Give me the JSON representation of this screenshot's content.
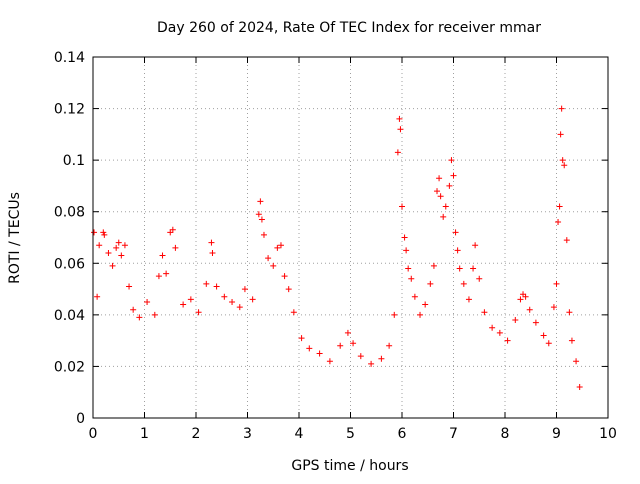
{
  "chart_data": {
    "type": "scatter",
    "title": "Day 260 of 2024, Rate Of TEC Index for receiver mmar",
    "xlabel": "GPS time / hours",
    "ylabel": "ROTI / TECUs",
    "xlim": [
      0,
      10
    ],
    "ylim": [
      0,
      0.14
    ],
    "x_ticks": [
      0,
      1,
      2,
      3,
      4,
      5,
      6,
      7,
      8,
      9,
      10
    ],
    "y_ticks": [
      0,
      0.02,
      0.04,
      0.06,
      0.08,
      0.1,
      0.12,
      0.14
    ],
    "y_tick_labels": [
      "0",
      "0.02",
      "0.04",
      "0.06",
      "0.08",
      "0.1",
      "0.12",
      "0.14"
    ],
    "grid": true,
    "marker": "+",
    "color": "#ff0000",
    "series": [
      {
        "name": "ROTI",
        "points": [
          [
            0.02,
            0.072
          ],
          [
            0.08,
            0.047
          ],
          [
            0.12,
            0.067
          ],
          [
            0.2,
            0.072
          ],
          [
            0.22,
            0.071
          ],
          [
            0.3,
            0.064
          ],
          [
            0.38,
            0.059
          ],
          [
            0.45,
            0.066
          ],
          [
            0.5,
            0.068
          ],
          [
            0.55,
            0.063
          ],
          [
            0.62,
            0.067
          ],
          [
            0.7,
            0.051
          ],
          [
            0.78,
            0.042
          ],
          [
            0.9,
            0.039
          ],
          [
            1.05,
            0.045
          ],
          [
            1.2,
            0.04
          ],
          [
            1.28,
            0.055
          ],
          [
            1.35,
            0.063
          ],
          [
            1.42,
            0.056
          ],
          [
            1.5,
            0.072
          ],
          [
            1.55,
            0.073
          ],
          [
            1.6,
            0.066
          ],
          [
            1.75,
            0.044
          ],
          [
            1.9,
            0.046
          ],
          [
            2.05,
            0.041
          ],
          [
            2.2,
            0.052
          ],
          [
            2.3,
            0.068
          ],
          [
            2.32,
            0.064
          ],
          [
            2.4,
            0.051
          ],
          [
            2.55,
            0.047
          ],
          [
            2.7,
            0.045
          ],
          [
            2.85,
            0.043
          ],
          [
            2.95,
            0.05
          ],
          [
            3.1,
            0.046
          ],
          [
            3.22,
            0.079
          ],
          [
            3.25,
            0.084
          ],
          [
            3.28,
            0.077
          ],
          [
            3.32,
            0.071
          ],
          [
            3.4,
            0.062
          ],
          [
            3.5,
            0.059
          ],
          [
            3.58,
            0.066
          ],
          [
            3.65,
            0.067
          ],
          [
            3.72,
            0.055
          ],
          [
            3.8,
            0.05
          ],
          [
            3.9,
            0.041
          ],
          [
            4.05,
            0.031
          ],
          [
            4.2,
            0.027
          ],
          [
            4.4,
            0.025
          ],
          [
            4.6,
            0.022
          ],
          [
            4.8,
            0.028
          ],
          [
            4.95,
            0.033
          ],
          [
            5.05,
            0.029
          ],
          [
            5.2,
            0.024
          ],
          [
            5.4,
            0.021
          ],
          [
            5.6,
            0.023
          ],
          [
            5.75,
            0.028
          ],
          [
            5.85,
            0.04
          ],
          [
            5.92,
            0.103
          ],
          [
            5.95,
            0.116
          ],
          [
            5.97,
            0.112
          ],
          [
            6.0,
            0.082
          ],
          [
            6.05,
            0.07
          ],
          [
            6.08,
            0.065
          ],
          [
            6.12,
            0.058
          ],
          [
            6.18,
            0.054
          ],
          [
            6.25,
            0.047
          ],
          [
            6.35,
            0.04
          ],
          [
            6.45,
            0.044
          ],
          [
            6.55,
            0.052
          ],
          [
            6.62,
            0.059
          ],
          [
            6.68,
            0.088
          ],
          [
            6.72,
            0.093
          ],
          [
            6.75,
            0.086
          ],
          [
            6.8,
            0.078
          ],
          [
            6.85,
            0.082
          ],
          [
            6.92,
            0.09
          ],
          [
            6.96,
            0.1
          ],
          [
            7.0,
            0.094
          ],
          [
            7.04,
            0.072
          ],
          [
            7.08,
            0.065
          ],
          [
            7.12,
            0.058
          ],
          [
            7.2,
            0.052
          ],
          [
            7.3,
            0.046
          ],
          [
            7.38,
            0.058
          ],
          [
            7.42,
            0.067
          ],
          [
            7.5,
            0.054
          ],
          [
            7.6,
            0.041
          ],
          [
            7.75,
            0.035
          ],
          [
            7.9,
            0.033
          ],
          [
            8.05,
            0.03
          ],
          [
            8.2,
            0.038
          ],
          [
            8.3,
            0.046
          ],
          [
            8.35,
            0.048
          ],
          [
            8.4,
            0.047
          ],
          [
            8.48,
            0.042
          ],
          [
            8.6,
            0.037
          ],
          [
            8.75,
            0.032
          ],
          [
            8.85,
            0.029
          ],
          [
            8.95,
            0.043
          ],
          [
            9.0,
            0.052
          ],
          [
            9.03,
            0.076
          ],
          [
            9.06,
            0.082
          ],
          [
            9.08,
            0.11
          ],
          [
            9.1,
            0.12
          ],
          [
            9.12,
            0.1
          ],
          [
            9.15,
            0.098
          ],
          [
            9.2,
            0.069
          ],
          [
            9.25,
            0.041
          ],
          [
            9.3,
            0.03
          ],
          [
            9.38,
            0.022
          ],
          [
            9.45,
            0.012
          ]
        ]
      }
    ]
  }
}
